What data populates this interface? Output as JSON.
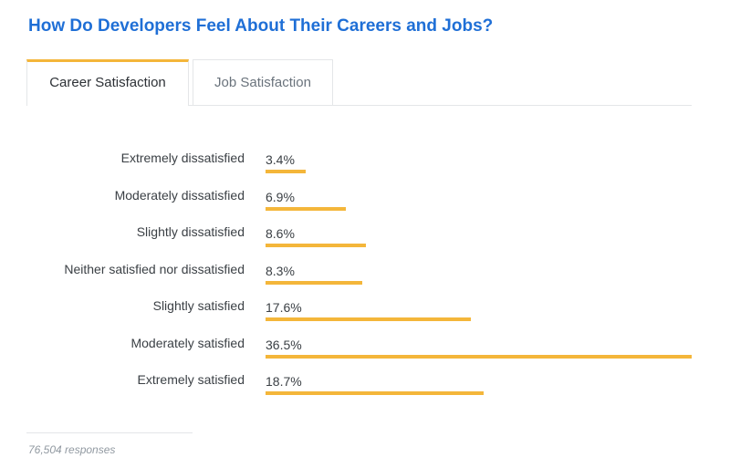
{
  "title": "How Do Developers Feel About Their Careers and Jobs?",
  "tabs": [
    {
      "label": "Career Satisfaction",
      "active": true
    },
    {
      "label": "Job Satisfaction",
      "active": false
    }
  ],
  "accent_color": "#f4b63a",
  "title_color": "#1f6fd6",
  "chart_data": {
    "type": "bar",
    "orientation": "horizontal",
    "categories": [
      "Extremely dissatisfied",
      "Moderately dissatisfied",
      "Slightly dissatisfied",
      "Neither satisfied nor dissatisfied",
      "Slightly satisfied",
      "Moderately satisfied",
      "Extremely satisfied"
    ],
    "values": [
      3.4,
      6.9,
      8.6,
      8.3,
      17.6,
      36.5,
      18.7
    ],
    "value_labels": [
      "3.4%",
      "6.9%",
      "8.6%",
      "8.3%",
      "17.6%",
      "36.5%",
      "18.7%"
    ],
    "unit": "%",
    "xlim": [
      0,
      36.5
    ],
    "grid": false
  },
  "footer": {
    "responses": "76,504 responses"
  }
}
